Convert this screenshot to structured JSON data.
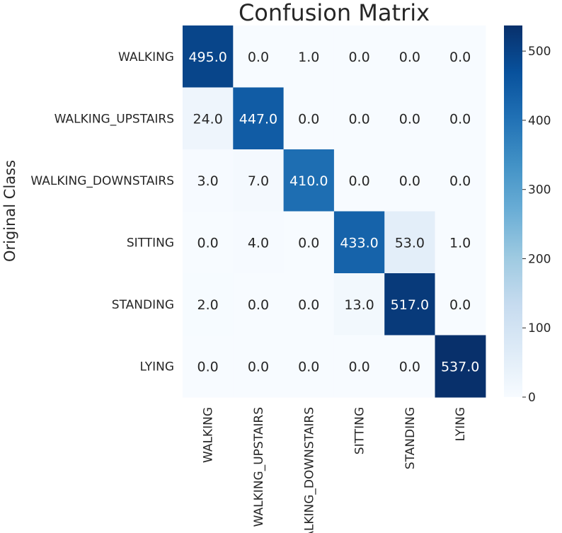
{
  "chart_data": {
    "type": "heatmap",
    "title": "Confusion Matrix",
    "ylabel": "Original Class",
    "xlabel": "",
    "x_categories": [
      "WALKING",
      "WALKING_UPSTAIRS",
      "WALKING_DOWNSTAIRS",
      "SITTING",
      "STANDING",
      "LYING"
    ],
    "y_categories": [
      "WALKING",
      "WALKING_UPSTAIRS",
      "WALKING_DOWNSTAIRS",
      "SITTING",
      "STANDING",
      "LYING"
    ],
    "values": [
      [
        495,
        0,
        1,
        0,
        0,
        0
      ],
      [
        24,
        447,
        0,
        0,
        0,
        0
      ],
      [
        3,
        7,
        410,
        0,
        0,
        0
      ],
      [
        0,
        4,
        0,
        433,
        53,
        1
      ],
      [
        2,
        0,
        0,
        13,
        517,
        0
      ],
      [
        0,
        0,
        0,
        0,
        0,
        537
      ]
    ],
    "value_format": "0.0",
    "colormap": "Blues",
    "color_range": [
      0,
      537
    ],
    "colorbar": {
      "position": "right",
      "ticks": [
        0,
        100,
        200,
        300,
        400,
        500
      ]
    }
  }
}
